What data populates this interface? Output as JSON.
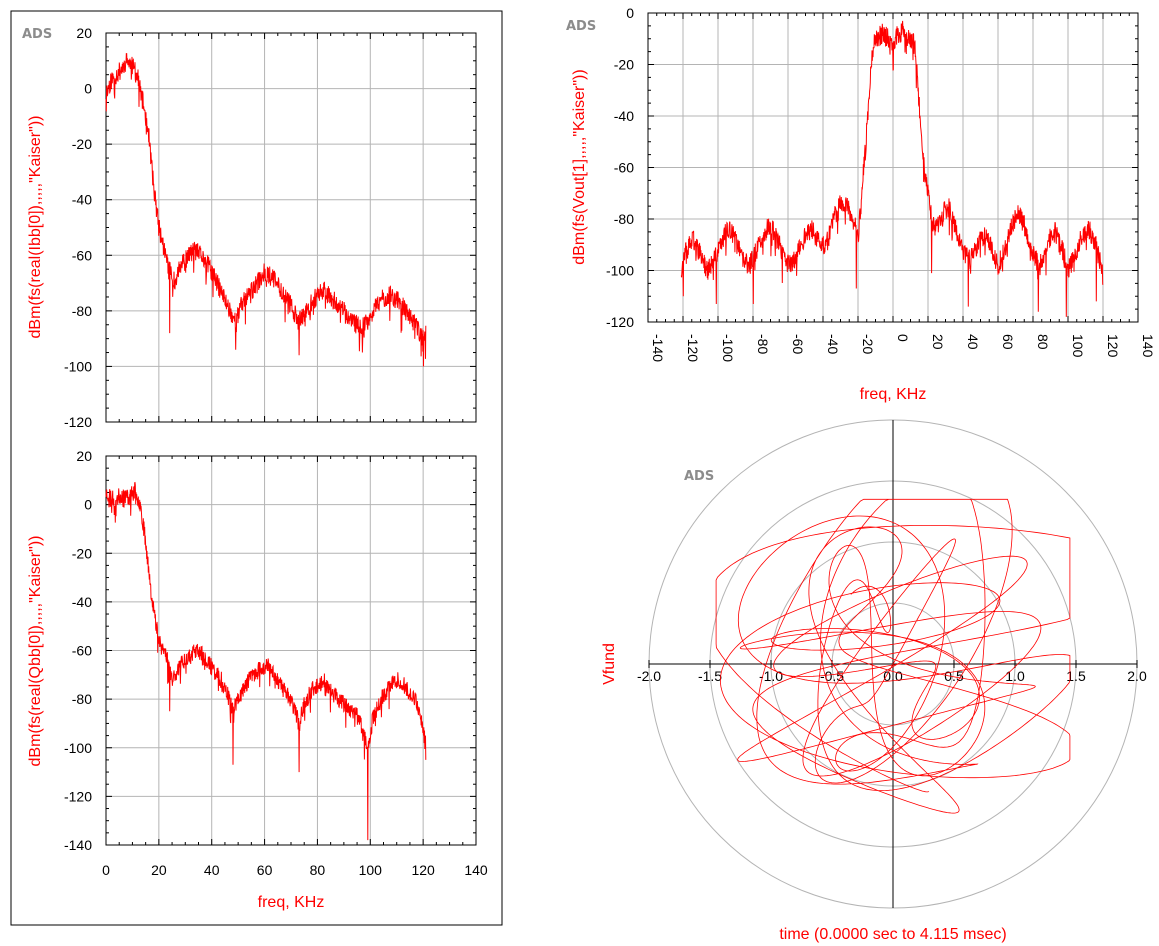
{
  "colors": {
    "trace": "#ff0000",
    "axis_text": "#ff0000",
    "grid": "#b4b4b4",
    "frame": "#000000",
    "watermark": "#8c8c8c"
  },
  "watermark": "ADS",
  "chart_data": [
    {
      "id": "ibb",
      "type": "line",
      "title": "",
      "xlabel": "",
      "ylabel": "dBm(fs(real(Ibb[0]),,,,,\"Kaiser\"))",
      "xlim": [
        0,
        140
      ],
      "ylim": [
        -120,
        20
      ],
      "xticks": [
        0,
        20,
        40,
        60,
        80,
        100,
        120,
        140
      ],
      "yticks": [
        20,
        0,
        -20,
        -40,
        -60,
        -80,
        -100,
        -120
      ],
      "show_xtick_labels": false,
      "grid": true,
      "anchors": [
        [
          0,
          -2
        ],
        [
          2,
          3
        ],
        [
          5,
          6
        ],
        [
          8,
          10
        ],
        [
          10,
          8
        ],
        [
          12,
          4
        ],
        [
          14,
          -5
        ],
        [
          16,
          -15
        ],
        [
          18,
          -35
        ],
        [
          20,
          -50
        ],
        [
          22,
          -58
        ],
        [
          24,
          -65
        ],
        [
          26,
          -70
        ],
        [
          28,
          -64
        ],
        [
          30,
          -62
        ],
        [
          33,
          -58
        ],
        [
          36,
          -60
        ],
        [
          39,
          -64
        ],
        [
          42,
          -70
        ],
        [
          46,
          -78
        ],
        [
          49,
          -84
        ],
        [
          52,
          -76
        ],
        [
          56,
          -72
        ],
        [
          60,
          -66
        ],
        [
          63,
          -68
        ],
        [
          66,
          -72
        ],
        [
          70,
          -78
        ],
        [
          73,
          -84
        ],
        [
          76,
          -80
        ],
        [
          80,
          -74
        ],
        [
          83,
          -72
        ],
        [
          86,
          -76
        ],
        [
          90,
          -80
        ],
        [
          93,
          -84
        ],
        [
          97,
          -86
        ],
        [
          100,
          -82
        ],
        [
          104,
          -76
        ],
        [
          108,
          -74
        ],
        [
          112,
          -78
        ],
        [
          116,
          -84
        ],
        [
          118,
          -86
        ],
        [
          120,
          -90
        ],
        [
          121,
          -88
        ]
      ],
      "spikes": [
        [
          24,
          -88
        ],
        [
          49,
          -94
        ],
        [
          73,
          -96
        ],
        [
          97,
          -95
        ],
        [
          120,
          -100
        ]
      ],
      "noise": 3.5,
      "seed": 11
    },
    {
      "id": "qbb",
      "type": "line",
      "title": "",
      "xlabel": "freq, KHz",
      "ylabel": "dBm(fs(real(Qbb[0]),,,,,\"Kaiser\"))",
      "xlim": [
        0,
        140
      ],
      "ylim": [
        -140,
        20
      ],
      "xticks": [
        0,
        20,
        40,
        60,
        80,
        100,
        120,
        140
      ],
      "yticks": [
        20,
        0,
        -20,
        -40,
        -60,
        -80,
        -100,
        -120,
        -140
      ],
      "show_xtick_labels": true,
      "grid": true,
      "anchors": [
        [
          0,
          5
        ],
        [
          3,
          2
        ],
        [
          6,
          4
        ],
        [
          9,
          3
        ],
        [
          11,
          6
        ],
        [
          13,
          0
        ],
        [
          15,
          -15
        ],
        [
          17,
          -35
        ],
        [
          19,
          -50
        ],
        [
          21,
          -58
        ],
        [
          23,
          -62
        ],
        [
          25,
          -72
        ],
        [
          28,
          -66
        ],
        [
          31,
          -62
        ],
        [
          35,
          -60
        ],
        [
          38,
          -64
        ],
        [
          42,
          -70
        ],
        [
          45,
          -74
        ],
        [
          48,
          -84
        ],
        [
          50,
          -80
        ],
        [
          54,
          -72
        ],
        [
          58,
          -68
        ],
        [
          61,
          -66
        ],
        [
          64,
          -70
        ],
        [
          67,
          -76
        ],
        [
          70,
          -80
        ],
        [
          73,
          -90
        ],
        [
          75,
          -82
        ],
        [
          78,
          -76
        ],
        [
          82,
          -72
        ],
        [
          85,
          -76
        ],
        [
          88,
          -80
        ],
        [
          92,
          -84
        ],
        [
          96,
          -88
        ],
        [
          99,
          -100
        ],
        [
          101,
          -88
        ],
        [
          104,
          -80
        ],
        [
          108,
          -74
        ],
        [
          111,
          -72
        ],
        [
          114,
          -76
        ],
        [
          118,
          -82
        ],
        [
          121,
          -98
        ]
      ],
      "spikes": [
        [
          24,
          -85
        ],
        [
          48,
          -107
        ],
        [
          73,
          -110
        ],
        [
          99,
          -138
        ],
        [
          121,
          -105
        ]
      ],
      "noise": 3.5,
      "seed": 23
    },
    {
      "id": "vout",
      "type": "line",
      "title": "",
      "xlabel": "freq, KHz",
      "ylabel": "dBm(fs(Vout[1],,,,,\"Kaiser\"))",
      "xlim": [
        -140,
        140
      ],
      "ylim": [
        -120,
        0
      ],
      "xticks": [
        -140,
        -120,
        -100,
        -80,
        -60,
        -40,
        -20,
        0,
        20,
        40,
        60,
        80,
        100,
        120,
        140
      ],
      "yticks": [
        0,
        -20,
        -40,
        -60,
        -80,
        -100,
        -120
      ],
      "show_xtick_labels": true,
      "grid": true,
      "anchors": [
        [
          -121,
          -100
        ],
        [
          -118,
          -92
        ],
        [
          -114,
          -88
        ],
        [
          -110,
          -94
        ],
        [
          -106,
          -100
        ],
        [
          -102,
          -96
        ],
        [
          -98,
          -88
        ],
        [
          -94,
          -84
        ],
        [
          -90,
          -88
        ],
        [
          -86,
          -96
        ],
        [
          -82,
          -98
        ],
        [
          -78,
          -92
        ],
        [
          -74,
          -86
        ],
        [
          -70,
          -82
        ],
        [
          -66,
          -88
        ],
        [
          -62,
          -96
        ],
        [
          -58,
          -98
        ],
        [
          -54,
          -92
        ],
        [
          -50,
          -86
        ],
        [
          -46,
          -84
        ],
        [
          -42,
          -90
        ],
        [
          -38,
          -90
        ],
        [
          -34,
          -80
        ],
        [
          -30,
          -74
        ],
        [
          -26,
          -74
        ],
        [
          -22,
          -82
        ],
        [
          -20,
          -88
        ],
        [
          -18,
          -70
        ],
        [
          -16,
          -55
        ],
        [
          -14,
          -35
        ],
        [
          -12,
          -15
        ],
        [
          -10,
          -10
        ],
        [
          -6,
          -8
        ],
        [
          -2,
          -10
        ],
        [
          0,
          -12
        ],
        [
          3,
          -8
        ],
        [
          6,
          -6
        ],
        [
          9,
          -10
        ],
        [
          12,
          -10
        ],
        [
          14,
          -25
        ],
        [
          16,
          -45
        ],
        [
          18,
          -62
        ],
        [
          20,
          -70
        ],
        [
          22,
          -80
        ],
        [
          25,
          -84
        ],
        [
          28,
          -78
        ],
        [
          32,
          -76
        ],
        [
          36,
          -84
        ],
        [
          40,
          -92
        ],
        [
          44,
          -96
        ],
        [
          48,
          -90
        ],
        [
          52,
          -86
        ],
        [
          56,
          -90
        ],
        [
          60,
          -98
        ],
        [
          64,
          -92
        ],
        [
          68,
          -82
        ],
        [
          72,
          -78
        ],
        [
          76,
          -84
        ],
        [
          80,
          -94
        ],
        [
          84,
          -98
        ],
        [
          88,
          -90
        ],
        [
          92,
          -84
        ],
        [
          96,
          -90
        ],
        [
          100,
          -100
        ],
        [
          104,
          -94
        ],
        [
          108,
          -86
        ],
        [
          112,
          -84
        ],
        [
          116,
          -90
        ],
        [
          120,
          -102
        ]
      ],
      "spikes": [
        [
          -120,
          -110
        ],
        [
          -101,
          -113
        ],
        [
          -80,
          -113
        ],
        [
          -21,
          -107
        ],
        [
          22,
          -101
        ],
        [
          43,
          -114
        ],
        [
          83,
          -116
        ],
        [
          99,
          -118
        ],
        [
          116,
          -112
        ]
      ],
      "noise": 4,
      "seed": 37
    },
    {
      "id": "vfund",
      "type": "polar",
      "title": "",
      "xlabel": "time (0.0000 sec to 4.115 msec)",
      "ylabel": "Vfund",
      "rmax": 2.0,
      "rings": [
        0.5,
        1.0,
        1.5,
        2.0
      ],
      "xticks": [
        "-2.0",
        "-1.5",
        "-1.0",
        "-0.5",
        "0.0",
        "0.5",
        "1.0",
        "1.5",
        "2.0"
      ],
      "grid": true,
      "bound": [
        1.45,
        1.35
      ],
      "trace_points": 3200,
      "seed": 5
    }
  ]
}
